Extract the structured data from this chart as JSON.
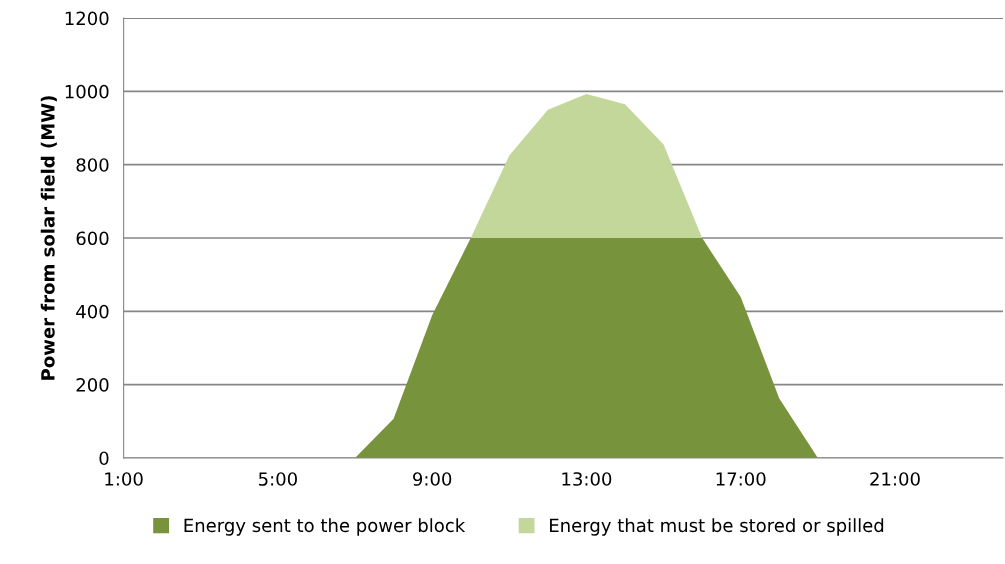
{
  "chart_data": {
    "type": "area",
    "stacked": true,
    "ylabel": "Power from solar field (MW)",
    "x": [
      7,
      8,
      9,
      10,
      11,
      12,
      13,
      14,
      15,
      16,
      17,
      18,
      19
    ],
    "series": [
      {
        "name": "Energy sent to the power block",
        "color": "#77933c",
        "values": [
          0,
          107,
          389,
          600,
          600,
          600,
          600,
          600,
          600,
          600,
          439,
          162,
          0
        ]
      },
      {
        "name": "Energy that must be stored or spilled",
        "color": "#c4d79b",
        "values": [
          null,
          null,
          null,
          0,
          225,
          350,
          393,
          365,
          255,
          0,
          null,
          null,
          null
        ]
      }
    ],
    "xlim": [
      1,
      23.8
    ],
    "xticks": [
      {
        "value": 1,
        "label": "1:00"
      },
      {
        "value": 5,
        "label": "5:00"
      },
      {
        "value": 9,
        "label": "9:00"
      },
      {
        "value": 13,
        "label": "13:00"
      },
      {
        "value": 17,
        "label": "17:00"
      },
      {
        "value": 21,
        "label": "21:00"
      }
    ],
    "ylim": [
      0,
      1200
    ],
    "yticks": [
      0,
      200,
      400,
      600,
      800,
      1000,
      1200
    ],
    "grid": "y",
    "legend": "bottom"
  }
}
